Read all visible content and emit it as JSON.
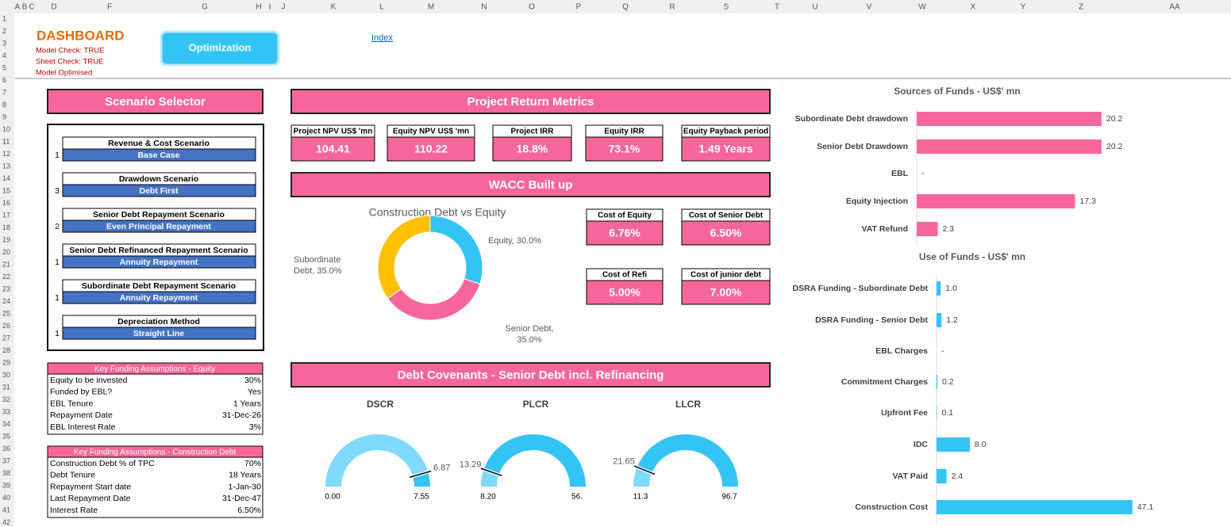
{
  "sheet": {
    "columns": [
      "A",
      "B",
      "C",
      "D",
      "F",
      "G",
      "H",
      "I",
      "J",
      "K",
      "L",
      "M",
      "N",
      "O",
      "P",
      "Q",
      "R",
      "S",
      "T",
      "U",
      "V",
      "W",
      "X",
      "Y",
      "Z",
      "AA"
    ],
    "rows": [
      1,
      2,
      3,
      4,
      5,
      6,
      7,
      8,
      9,
      10,
      11,
      12,
      13,
      14,
      15,
      16,
      17,
      18,
      19,
      20,
      21,
      22,
      23,
      24,
      25,
      26,
      27,
      28,
      29,
      30,
      31,
      32,
      33,
      34,
      35,
      36,
      37,
      38,
      39,
      40,
      41,
      42
    ]
  },
  "header": {
    "title": "DASHBOARD",
    "checks": [
      "Model Check: TRUE",
      "Sheet Check: TRUE",
      "Model Optimised"
    ],
    "button": "Optimization",
    "link": "Index"
  },
  "scenario_selector": {
    "title": "Scenario Selector",
    "items": [
      {
        "number": 1,
        "label": "Revenue & Cost Scenario",
        "value": "Base Case"
      },
      {
        "number": 3,
        "label": "Drawdown Scenario",
        "value": "Debt First"
      },
      {
        "number": 2,
        "label": "Senior Debt Repayment Scenario",
        "value": "Even Principal Repayment"
      },
      {
        "number": 1,
        "label": "Senior Debt Refinanced Repayment Scenario",
        "value": "Annuity Repayment"
      },
      {
        "number": 1,
        "label": "Subordinate Debt Repayment Scenario",
        "value": "Annuity Repayment"
      },
      {
        "number": 1,
        "label": "Depreciation Method",
        "value": "Straight Line"
      }
    ]
  },
  "equity_assumptions": {
    "title": "Key Funding Assumptions - Equity",
    "rows": [
      [
        "Equity to be invested",
        "30%"
      ],
      [
        "Funded by EBL?",
        "Yes"
      ],
      [
        "EBL Tenure",
        "1 Years"
      ],
      [
        "Repayment Date",
        "31-Dec-26"
      ],
      [
        "EBL Interest Rate",
        "3%"
      ]
    ]
  },
  "debt_assumptions": {
    "title": "Key Funding Assumptions - Construction Debt",
    "rows": [
      [
        "Construction Debt % of TPC",
        "70%"
      ],
      [
        "Debt Tenure",
        "18 Years"
      ],
      [
        "Repayment Start date",
        "1-Jan-30"
      ],
      [
        "Last Repayment Date",
        "31-Dec-47"
      ],
      [
        "Interest Rate",
        "6.50%"
      ]
    ]
  },
  "return_metrics": {
    "title": "Project Return Metrics",
    "items": [
      {
        "label": "Project NPV US$ 'mn",
        "value": "104.41"
      },
      {
        "label": "Equity NPV US$ 'mn",
        "value": "110.22"
      },
      {
        "label": "Project IRR",
        "value": "18.8%"
      },
      {
        "label": "Equity IRR",
        "value": "73.1%"
      },
      {
        "label": "Equity Payback period",
        "value": "1.49 Years"
      }
    ]
  },
  "wacc": {
    "title": "WACC Built up",
    "items": [
      {
        "label": "Cost of Equity",
        "value": "6.76%"
      },
      {
        "label": "Cost of Senior Debt",
        "value": "6.50%"
      },
      {
        "label": "Cost of Refi",
        "value": "5.00%"
      },
      {
        "label": "Cost of junior debt",
        "value": "7.00%"
      }
    ],
    "chart": {
      "type": "pie",
      "title": "Construction Debt vs Equity",
      "values": [
        30,
        35,
        35
      ],
      "value_labels": [
        "Equity, 30.0%",
        "Senior Debt, 35.0%",
        "Subordinate Debt, 35.0%"
      ],
      "colors": [
        "#33c4f5",
        "#f7669a",
        "#ffc000"
      ]
    }
  },
  "sources_chart": {
    "type": "bar",
    "title": "Sources of Funds - US$' mn",
    "categories": [
      "Subordinate Debt drawdown",
      "Senior Debt Drawdown",
      "EBL",
      "Equity Injection",
      "VAT Refund"
    ],
    "values": [
      20.2,
      20.2,
      0,
      17.3,
      2.3
    ],
    "value_labels": [
      "20.2",
      "20.2",
      "-",
      "17.3",
      "2.3"
    ],
    "color": "#f7669a"
  },
  "uses_chart": {
    "type": "bar",
    "title": "Use of Funds - US$' mn",
    "categories": [
      "DSRA Funding - Subordinate Debt",
      "DSRA Funding - Senior Debt",
      "EBL Charges",
      "Commitment Charges",
      "Upfront Fee",
      "IDC",
      "VAT Paid",
      "Construction Cost"
    ],
    "values": [
      1.0,
      1.2,
      0,
      0.2,
      0.1,
      8.0,
      2.4,
      47.1
    ],
    "value_labels": [
      "1.0",
      "1.2",
      "-",
      "0.2",
      "0.1",
      "8.0",
      "2.4",
      "47.1"
    ],
    "color": "#33c4f5"
  },
  "covenants": {
    "title": "Debt Covenants - Senior Debt incl. Refinancing",
    "gauges": [
      {
        "type": "gauge",
        "title": "DSCR",
        "value": 6.87,
        "ticks": [
          {
            "value": 0,
            "label": "0.00"
          },
          7.55
        ],
        "colors": [
          "#80d9ff",
          "#33c4f5"
        ]
      },
      {
        "type": "gauge",
        "title": "PLCR",
        "value": 13.29,
        "ticks": [
          {
            "value": 8.2,
            "label": "8.20"
          },
          {
            "value": 56,
            "label": "56."
          }
        ],
        "colors": [
          "#80d9ff",
          "#33c4f5"
        ]
      },
      {
        "type": "gauge",
        "title": "LLCR",
        "value": 21.65,
        "ticks": [
          11.3,
          96.7
        ],
        "colors": [
          "#80d9ff",
          "#33c4f5"
        ]
      }
    ]
  }
}
